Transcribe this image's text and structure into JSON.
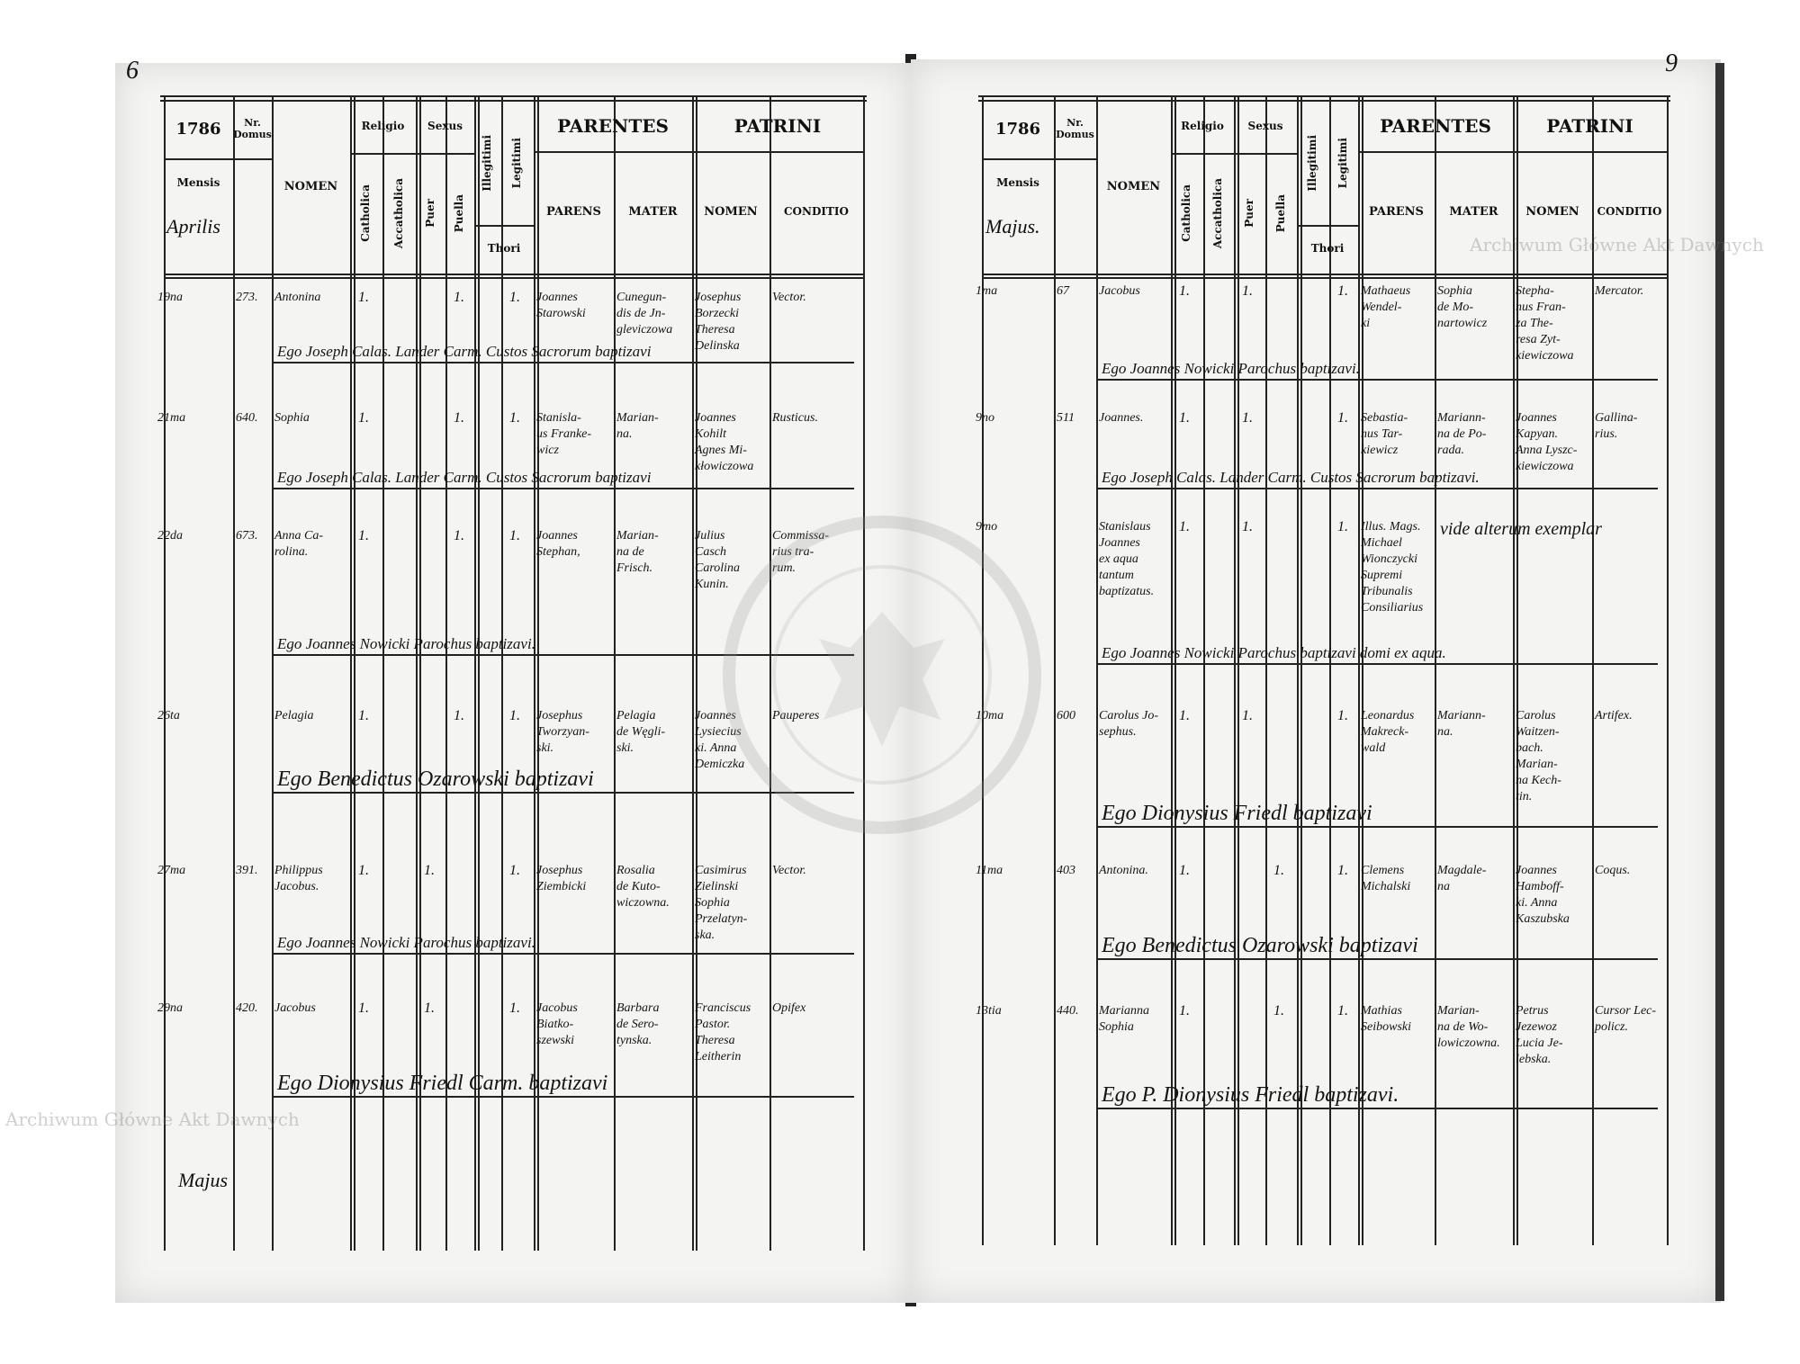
{
  "watermark": "Archiwum Główne Akt Dawnych",
  "stamp_text": "ARCHIWUM GŁÓWNE AKT DAWNYCH",
  "header": {
    "year": "1786",
    "nr_domus": "Nr. Domus",
    "mensis": "Mensis",
    "nomen": "NOMEN",
    "religio": "Religio",
    "catholica": "Catholica",
    "acatholica": "Accatholica",
    "sexus": "Sexus",
    "puer": "Puer",
    "puella": "Puella",
    "illegitimi": "Illegitimi",
    "legitimi": "Legitimi",
    "thori": "Thori",
    "parentes": "PARENTES",
    "parens": "PARENS",
    "mater": "MATER",
    "patrini": "PATRINI",
    "patrini_nomen": "NOMEN",
    "conditio": "CONDITIO"
  },
  "pages": [
    {
      "page_number": "6",
      "month": "Aprilis",
      "footer_month": "Majus",
      "entries": [
        {
          "date": "19na",
          "nr": "273.",
          "nomen": "Antonina",
          "catholica": "1.",
          "puer": "",
          "puella": "1.",
          "legitimi": "1.",
          "parens": "Joannes\nStarowski",
          "mater": "Cunegun-\ndis de Jn-\ngleviczowa",
          "patrini": "Josephus\nBorzecki\nTheresa\nDelinska",
          "conditio": "Vector.",
          "signature": "Ego Joseph Calas. Lander Carm. Custos Sacrorum baptizavi"
        },
        {
          "date": "21ma",
          "nr": "640.",
          "nomen": "Sophia",
          "catholica": "1.",
          "puer": "",
          "puella": "1.",
          "legitimi": "1.",
          "parens": "Stanisla-\nus Franke-\nwicz",
          "mater": "Marian-\nna.",
          "patrini": "Joannes\nKohilt\nAgnes Mi-\nkłowiczowa",
          "conditio": "Rusticus.",
          "signature": "Ego Joseph Calas. Lander Carm. Custos Sacrorum baptizavi"
        },
        {
          "date": "22da",
          "nr": "673.",
          "nomen": "Anna Ca-\nrolina.",
          "catholica": "1.",
          "puer": "",
          "puella": "1.",
          "legitimi": "1.",
          "parens": "Joannes\nStephan,",
          "mater": "Marian-\nna de\nFrisch.",
          "patrini": "Julius\nCasch\nCarolina\nKunin.",
          "conditio": "Commissa-\nrius tra-\nrum.",
          "signature": "Ego Joannes Nowicki Parochus baptizavi."
        },
        {
          "date": "26ta",
          "nr": "",
          "nomen": "Pelagia",
          "catholica": "1.",
          "puer": "",
          "puella": "1.",
          "legitimi": "1.",
          "parens": "Josephus\nTworzyan-\nski.",
          "mater": "Pelagia\nde Węgli-\nski.",
          "patrini": "Joannes\nLysiecius\nki. Anna\nDemiczka",
          "conditio": "Pauperes",
          "signature": "Ego Benedictus Ozarowski baptizavi"
        },
        {
          "date": "27ma",
          "nr": "391.",
          "nomen": "Philippus\nJacobus.",
          "catholica": "1.",
          "puer": "1.",
          "puella": "",
          "legitimi": "1.",
          "parens": "Josephus\nZiembicki",
          "mater": "Rosalia\nde Kuto-\nwiczowna.",
          "patrini": "Casimirus\nZielinski\nSophia\nPrzelatyn-\nska.",
          "conditio": "Vector.",
          "signature": "Ego Joannes Nowicki Parochus baptizavi."
        },
        {
          "date": "29na",
          "nr": "420.",
          "nomen": "Jacobus",
          "catholica": "1.",
          "puer": "1.",
          "puella": "",
          "legitimi": "1.",
          "parens": "Jacobus\nBiatko-\nszewski",
          "mater": "Barbara\nde Sero-\ntynska.",
          "patrini": "Franciscus\nPastor.\nTheresa\nLeitherin",
          "conditio": "Opifex",
          "signature": "Ego Dionysius Friedl Carm. baptizavi"
        }
      ]
    },
    {
      "page_number": "9",
      "month": "Majus.",
      "entries": [
        {
          "date": "1ma",
          "nr": "67",
          "nomen": "Jacobus",
          "catholica": "1.",
          "puer": "1.",
          "puella": "",
          "legitimi": "1.",
          "parens": "Mathaeus\nWendel-\nki",
          "mater": "Sophia\nde Mo-\nnartowicz",
          "patrini": "Stepha-\nnus Fran-\nza The-\nresa Zyt-\nkiewiczowa",
          "conditio": "Mercator.",
          "signature": "Ego Joannes Nowicki Parochus baptizavi."
        },
        {
          "date": "9no",
          "nr": "511",
          "nomen": "Joannes.",
          "catholica": "1.",
          "puer": "1.",
          "puella": "",
          "legitimi": "1.",
          "parens": "Sebastia-\nnus Tar-\nkiewicz",
          "mater": "Mariann-\nna de Po-\nrada.",
          "patrini": "Joannes\nKapyan.\nAnna Lyszc-\nkiewiczowa",
          "conditio": "Gallina-\nrius.",
          "signature": "Ego Joseph Calas. Lander Carm. Custos Sacrorum baptizavi."
        },
        {
          "date": "9mo",
          "nr": "",
          "nomen": "Stanislaus\nJoannes\nex aqua\ntantum\nbaptizatus.",
          "catholica": "1.",
          "puer": "1.",
          "puella": "",
          "legitimi": "1.",
          "parens": "Illus. Mags.\nMichael\nWionczycki\nSupremi\nTribunalis\nConsiliarius",
          "mater": "",
          "patrini": "",
          "conditio": "",
          "remark": "vide alterum exemplar",
          "signature": "Ego Joannes Nowicki Parochus baptizavi domi ex aqua."
        },
        {
          "date": "10ma",
          "nr": "600",
          "nomen": "Carolus Jo-\nsephus.",
          "catholica": "1.",
          "puer": "1.",
          "puella": "",
          "legitimi": "1.",
          "parens": "Leonardus\nMakreck-\nwald",
          "mater": "Mariann-\nna.",
          "patrini": "Carolus\nWaitzen-\nbach.\nMarian-\nna Kech-\ntin.",
          "conditio": "Artifex.",
          "signature": "Ego Dionysius Friedl baptizavi"
        },
        {
          "date": "11ma",
          "nr": "403",
          "nomen": "Antonina.",
          "catholica": "1.",
          "puer": "",
          "puella": "1.",
          "legitimi": "1.",
          "parens": "Clemens\nMichalski",
          "mater": "Magdale-\nna",
          "patrini": "Joannes\nHamboff-\nki. Anna\nKaszubska",
          "conditio": "Coqus.",
          "signature": "Ego Benedictus Ozarowski baptizavi"
        },
        {
          "date": "13tia",
          "nr": "440.",
          "nomen": "Marianna\nSophia",
          "catholica": "1.",
          "puer": "",
          "puella": "1.",
          "legitimi": "1.",
          "parens": "Mathias\nSeibowski",
          "mater": "Marian-\nna de Wo-\nlowiczowna.",
          "patrini": "Petrus\nJezewoz\nLucia Je-\nlebska.",
          "conditio": "Cursor Lec-\npolicz.",
          "signature": "Ego P. Dionysius Friedl baptizavi."
        }
      ]
    }
  ]
}
